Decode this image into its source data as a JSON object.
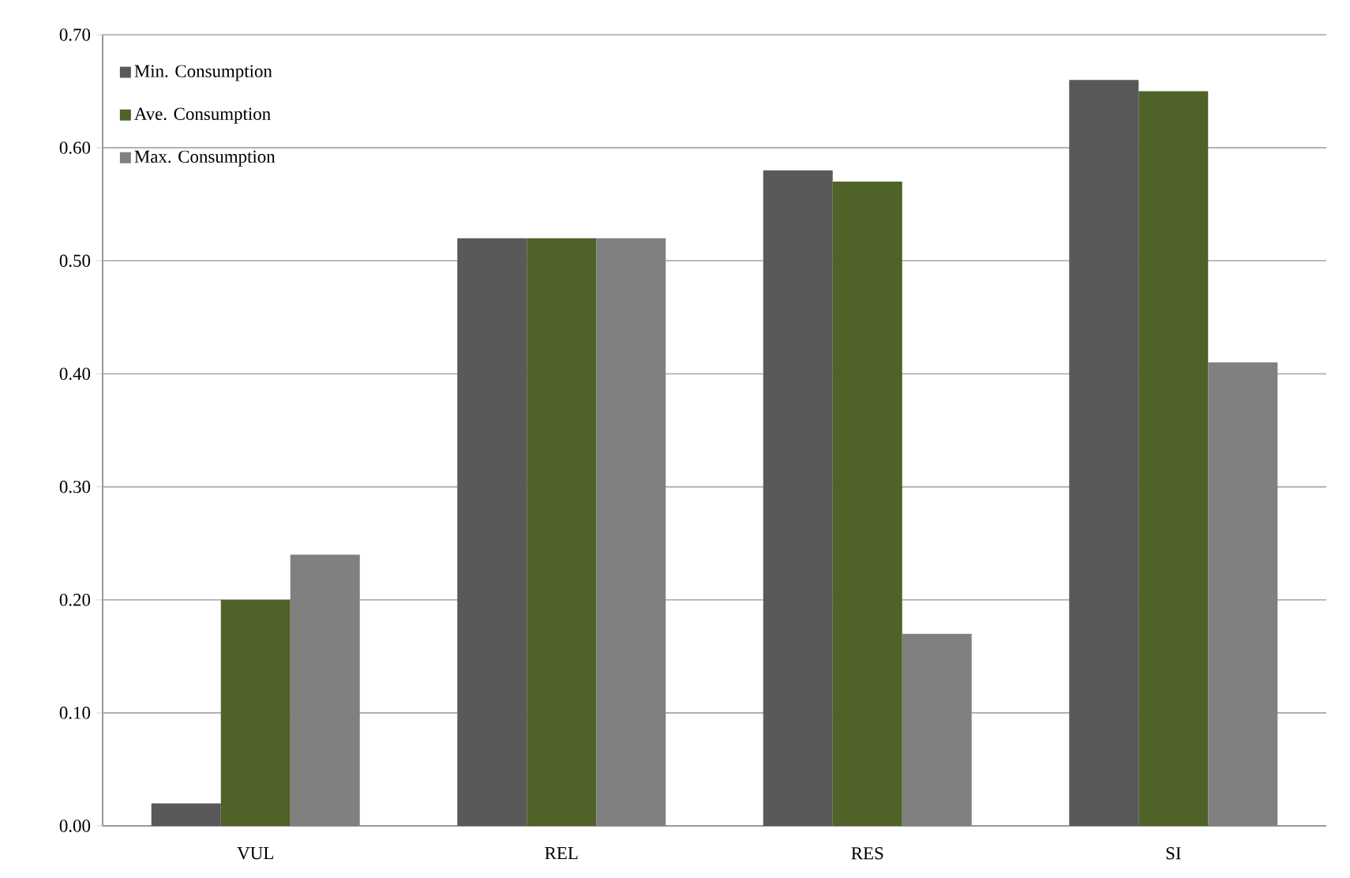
{
  "chart_data": {
    "type": "bar",
    "categories": [
      "VUL",
      "REL",
      "RES",
      "SI"
    ],
    "series": [
      {
        "name": "Min. Consumption",
        "color": "#595959",
        "values": [
          0.02,
          0.52,
          0.58,
          0.66
        ]
      },
      {
        "name": "Ave. Consumption",
        "color": "#4f6228",
        "values": [
          0.2,
          0.52,
          0.57,
          0.65
        ]
      },
      {
        "name": "Max. Consumption",
        "color": "#808080",
        "values": [
          0.24,
          0.52,
          0.17,
          0.41
        ]
      }
    ],
    "ylim": [
      0,
      0.7
    ],
    "yticks": [
      {
        "value": 0,
        "label": "0.00"
      },
      {
        "value": 0.1,
        "label": "0.10"
      },
      {
        "value": 0.2,
        "label": "0.20"
      },
      {
        "value": 0.3,
        "label": "0.30"
      },
      {
        "value": 0.4,
        "label": "0.40"
      },
      {
        "value": 0.5,
        "label": "0.50"
      },
      {
        "value": 0.6,
        "label": "0.60"
      },
      {
        "value": 0.7,
        "label": "0.70"
      }
    ],
    "grid": "y",
    "legend": "top left"
  }
}
